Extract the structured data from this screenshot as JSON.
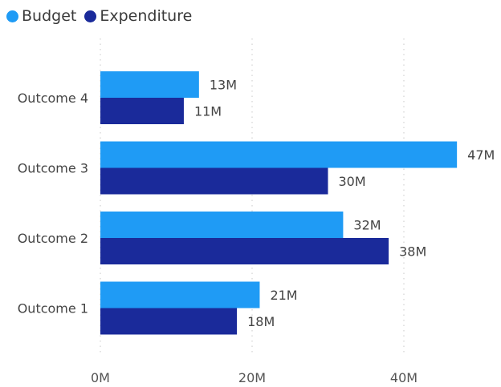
{
  "legend": {
    "items": [
      {
        "label": "Budget",
        "color": "#1f9bf5"
      },
      {
        "label": "Expenditure",
        "color": "#1a2a9a"
      }
    ]
  },
  "chart_data": {
    "type": "bar",
    "orientation": "horizontal",
    "categories": [
      "Outcome 4",
      "Outcome 3",
      "Outcome 2",
      "Outcome 1"
    ],
    "series": [
      {
        "name": "Budget",
        "color": "#1f9bf5",
        "values": [
          13,
          47,
          32,
          21
        ],
        "labels": [
          "13M",
          "47M",
          "32M",
          "21M"
        ]
      },
      {
        "name": "Expenditure",
        "color": "#1a2a9a",
        "values": [
          11,
          30,
          38,
          18
        ],
        "labels": [
          "11M",
          "30M",
          "38M",
          "18M"
        ]
      }
    ],
    "x_ticks": [
      0,
      20,
      40
    ],
    "x_tick_labels": [
      "0M",
      "20M",
      "40M"
    ],
    "xlim": [
      0,
      52
    ],
    "grid": true,
    "legend_position": "top-left"
  }
}
